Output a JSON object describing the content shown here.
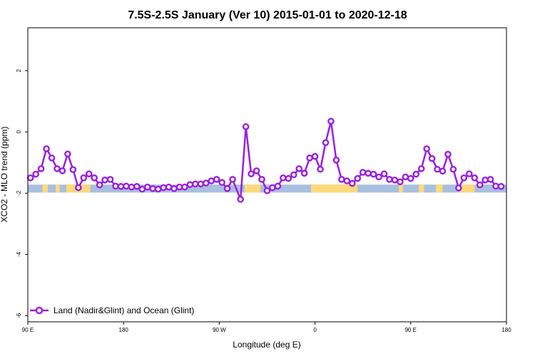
{
  "chart_data": {
    "type": "line",
    "title": "7.5S-2.5S January (Ver 10)   2015-01-01 to 2020-12-18",
    "xlabel": "Longitude (deg E)",
    "ylabel": "XCO2 - MLO trend (ppm)",
    "xlim": [
      90,
      450
    ],
    "ylim": [
      -6.2,
      3.4
    ],
    "x_ticks": [
      {
        "value": 90,
        "label": "90 E"
      },
      {
        "value": 162,
        "label": "180"
      },
      {
        "value": 234,
        "label": "90 W"
      },
      {
        "value": 306,
        "label": "0"
      },
      {
        "value": 378,
        "label": "90 E"
      },
      {
        "value": 450,
        "label": "180"
      }
    ],
    "y_ticks": [
      {
        "value": 2,
        "label": "2"
      },
      {
        "value": 0,
        "label": "0"
      },
      {
        "value": -2,
        "label": "-2"
      },
      {
        "value": -4,
        "label": "-4"
      },
      {
        "value": -6,
        "label": "-6"
      }
    ],
    "legend": {
      "position": "bottom-left",
      "label": "Land (Nadir&Glint) and Ocean (Glint)"
    },
    "series_color": "#9a1fe0",
    "band": {
      "y_top": -1.72,
      "y_bottom": -1.98,
      "ocean_color": "#a8bfdf",
      "land_color": "#ffd97a"
    },
    "land_segments": [
      [
        101,
        105
      ],
      [
        111,
        114
      ],
      [
        136,
        137
      ],
      [
        119,
        136
      ],
      [
        303,
        311
      ],
      [
        324,
        338
      ],
      [
        253,
        265
      ],
      [
        303,
        332
      ],
      [
        369,
        372
      ],
      [
        384,
        388
      ],
      [
        397,
        402
      ],
      [
        415,
        426
      ]
    ],
    "series": [
      {
        "name": "Land (Nadir&Glint) and Ocean (Glint)",
        "points": [
          [
            92,
            -1.5
          ],
          [
            96,
            -1.38
          ],
          [
            100,
            -1.2
          ],
          [
            104,
            -0.55
          ],
          [
            108,
            -0.85
          ],
          [
            112,
            -1.2
          ],
          [
            116,
            -1.27
          ],
          [
            120,
            -0.72
          ],
          [
            124,
            -1.23
          ],
          [
            128,
            -1.82
          ],
          [
            132,
            -1.5
          ],
          [
            136,
            -1.37
          ],
          [
            140,
            -1.5
          ],
          [
            144,
            -1.73
          ],
          [
            148,
            -1.57
          ],
          [
            152,
            -1.55
          ],
          [
            156,
            -1.77
          ],
          [
            160,
            -1.78
          ],
          [
            164,
            -1.77
          ],
          [
            168,
            -1.8
          ],
          [
            172,
            -1.78
          ],
          [
            176,
            -1.87
          ],
          [
            180,
            -1.8
          ],
          [
            184,
            -1.85
          ],
          [
            188,
            -1.87
          ],
          [
            192,
            -1.82
          ],
          [
            196,
            -1.8
          ],
          [
            200,
            -1.85
          ],
          [
            204,
            -1.8
          ],
          [
            208,
            -1.8
          ],
          [
            212,
            -1.72
          ],
          [
            216,
            -1.7
          ],
          [
            220,
            -1.7
          ],
          [
            224,
            -1.67
          ],
          [
            228,
            -1.6
          ],
          [
            232,
            -1.55
          ],
          [
            236,
            -1.65
          ],
          [
            240,
            -1.85
          ],
          [
            244,
            -1.55
          ],
          [
            250,
            -2.2
          ],
          [
            254,
            0.17
          ],
          [
            258,
            -1.37
          ],
          [
            262,
            -1.27
          ],
          [
            266,
            -1.55
          ],
          [
            270,
            -1.92
          ],
          [
            274,
            -1.82
          ],
          [
            278,
            -1.77
          ],
          [
            282,
            -1.5
          ],
          [
            286,
            -1.52
          ],
          [
            290,
            -1.4
          ],
          [
            294,
            -1.2
          ],
          [
            298,
            -1.35
          ],
          [
            302,
            -0.85
          ],
          [
            306,
            -0.8
          ],
          [
            310,
            -1.22
          ],
          [
            314,
            -0.35
          ],
          [
            318,
            0.35
          ],
          [
            322,
            -0.92
          ],
          [
            326,
            -1.55
          ],
          [
            330,
            -1.6
          ],
          [
            334,
            -1.68
          ],
          [
            338,
            -1.52
          ],
          [
            342,
            -1.32
          ],
          [
            346,
            -1.35
          ],
          [
            350,
            -1.38
          ],
          [
            354,
            -1.47
          ],
          [
            358,
            -1.37
          ],
          [
            362,
            -1.55
          ],
          [
            366,
            -1.57
          ],
          [
            370,
            -1.63
          ],
          [
            374,
            -1.47
          ],
          [
            378,
            -1.52
          ],
          [
            382,
            -1.38
          ],
          [
            386,
            -1.2
          ],
          [
            390,
            -0.55
          ],
          [
            394,
            -0.87
          ],
          [
            398,
            -1.22
          ],
          [
            402,
            -1.28
          ],
          [
            406,
            -0.73
          ],
          [
            410,
            -1.22
          ],
          [
            414,
            -1.83
          ],
          [
            418,
            -1.5
          ],
          [
            422,
            -1.37
          ],
          [
            426,
            -1.5
          ],
          [
            430,
            -1.73
          ],
          [
            434,
            -1.57
          ],
          [
            438,
            -1.55
          ],
          [
            442,
            -1.77
          ],
          [
            446,
            -1.78
          ]
        ]
      }
    ]
  }
}
